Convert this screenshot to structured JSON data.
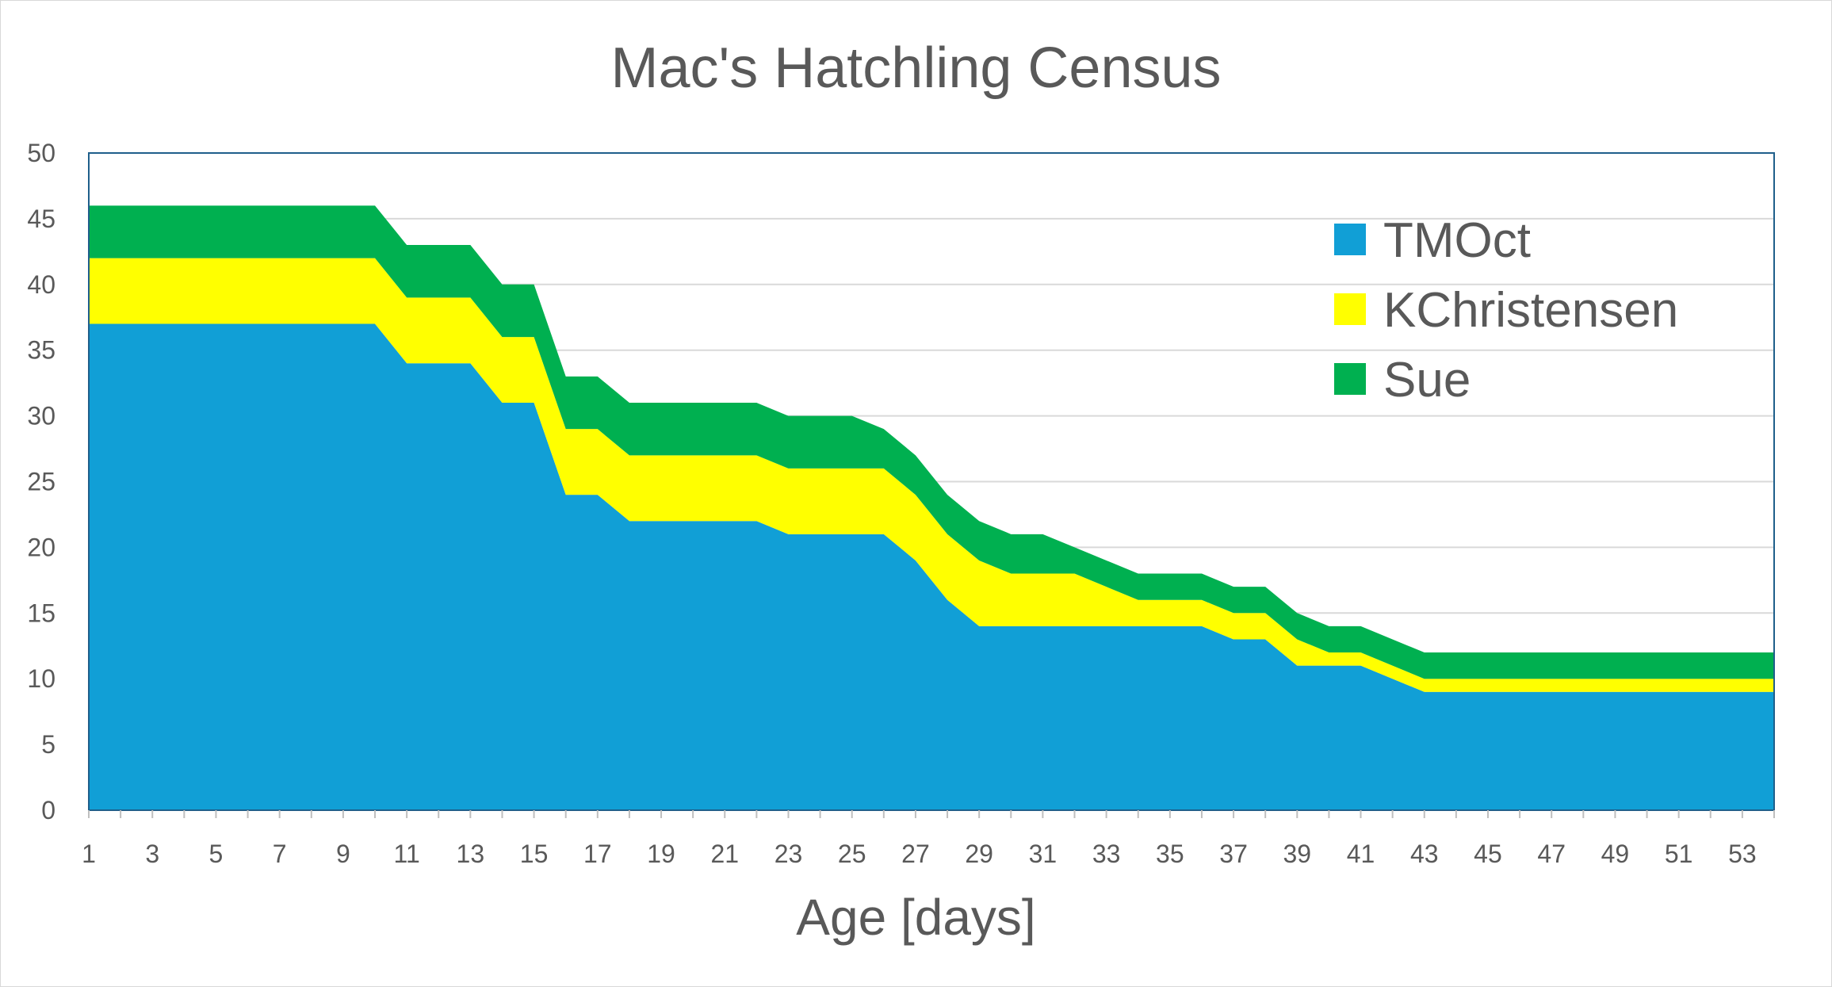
{
  "chart_data": {
    "type": "area",
    "stacked": true,
    "title": "Mac's Hatchling Census",
    "xlabel": "Age [days]",
    "ylabel": "",
    "x": [
      1,
      2,
      3,
      4,
      5,
      6,
      7,
      8,
      9,
      10,
      11,
      12,
      13,
      14,
      15,
      16,
      17,
      18,
      19,
      20,
      21,
      22,
      23,
      24,
      25,
      26,
      27,
      28,
      29,
      30,
      31,
      32,
      33,
      34,
      35,
      36,
      37,
      38,
      39,
      40,
      41,
      42,
      43,
      44,
      45,
      46,
      47,
      48,
      49,
      50,
      51,
      52,
      53,
      54
    ],
    "x_tick_labels": [
      "1",
      "3",
      "5",
      "7",
      "9",
      "11",
      "13",
      "15",
      "17",
      "19",
      "21",
      "23",
      "25",
      "27",
      "29",
      "31",
      "33",
      "35",
      "37",
      "39",
      "41",
      "43",
      "45",
      "47",
      "49",
      "51",
      "53"
    ],
    "ylim": [
      0,
      50
    ],
    "y_ticks": [
      0,
      5,
      10,
      15,
      20,
      25,
      30,
      35,
      40,
      45,
      50
    ],
    "grid": true,
    "legend_position": "top-right",
    "series": [
      {
        "name": "TMOct",
        "color": "#119fd6",
        "values": [
          37,
          37,
          37,
          37,
          37,
          37,
          37,
          37,
          37,
          37,
          34,
          34,
          34,
          31,
          31,
          24,
          24,
          22,
          22,
          22,
          22,
          22,
          21,
          21,
          21,
          21,
          19,
          16,
          14,
          14,
          14,
          14,
          14,
          14,
          14,
          14,
          13,
          13,
          11,
          11,
          11,
          10,
          9,
          9,
          9,
          9,
          9,
          9,
          9,
          9,
          9,
          9,
          9,
          9
        ]
      },
      {
        "name": "KChristensen",
        "color": "#ffff00",
        "values": [
          5,
          5,
          5,
          5,
          5,
          5,
          5,
          5,
          5,
          5,
          5,
          5,
          5,
          5,
          5,
          5,
          5,
          5,
          5,
          5,
          5,
          5,
          5,
          5,
          5,
          5,
          5,
          5,
          5,
          4,
          4,
          4,
          3,
          2,
          2,
          2,
          2,
          2,
          2,
          1,
          1,
          1,
          1,
          1,
          1,
          1,
          1,
          1,
          1,
          1,
          1,
          1,
          1,
          1
        ]
      },
      {
        "name": "Sue",
        "color": "#00b050",
        "values": [
          4,
          4,
          4,
          4,
          4,
          4,
          4,
          4,
          4,
          4,
          4,
          4,
          4,
          4,
          4,
          4,
          4,
          4,
          4,
          4,
          4,
          4,
          4,
          4,
          4,
          3,
          3,
          3,
          3,
          3,
          3,
          2,
          2,
          2,
          2,
          2,
          2,
          2,
          2,
          2,
          2,
          2,
          2,
          2,
          2,
          2,
          2,
          2,
          2,
          2,
          2,
          2,
          2,
          2
        ]
      }
    ]
  }
}
